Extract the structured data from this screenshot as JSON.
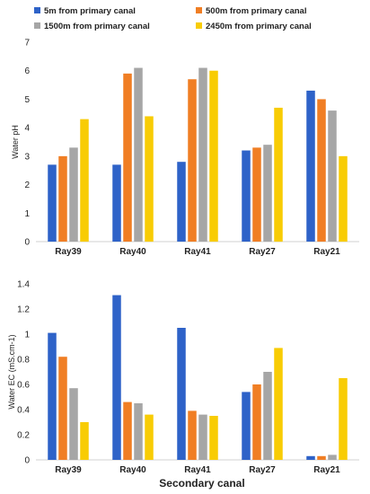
{
  "legend": [
    {
      "label": "5m from primary canal",
      "color": "#2E62C8"
    },
    {
      "label": "500m from primary canal",
      "color": "#F07E24"
    },
    {
      "label": "1500m from primary canal",
      "color": "#A6A6A6"
    },
    {
      "label": "2450m from primary canal",
      "color": "#F8CC04"
    }
  ],
  "xlabel": "Secondary canal",
  "chart_data": [
    {
      "type": "bar",
      "categories": [
        "Ray39",
        "Ray40",
        "Ray41",
        "Ray27",
        "Ray21"
      ],
      "ylabel": "Water pH",
      "ylim": [
        0,
        7
      ],
      "yticks": [
        "0",
        "1",
        "2",
        "3",
        "4",
        "5",
        "6",
        "7"
      ],
      "grid": false,
      "series": [
        {
          "name": "5m from primary canal",
          "values": [
            2.7,
            2.7,
            2.8,
            3.2,
            5.3
          ]
        },
        {
          "name": "500m from primary canal",
          "values": [
            3.0,
            5.9,
            5.7,
            3.3,
            5.0
          ]
        },
        {
          "name": "1500m from primary canal",
          "values": [
            3.3,
            6.1,
            6.1,
            3.4,
            4.6
          ]
        },
        {
          "name": "2450m from primary canal",
          "values": [
            4.3,
            4.4,
            6.0,
            4.7,
            3.0
          ]
        }
      ]
    },
    {
      "type": "bar",
      "categories": [
        "Ray39",
        "Ray40",
        "Ray41",
        "Ray27",
        "Ray21"
      ],
      "ylabel": "Water EC (mS.cm-1)",
      "ylim": [
        0,
        1.4
      ],
      "yticks": [
        "0",
        "0.2",
        "0.4",
        "0.6",
        "0.8",
        "1",
        "1.2",
        "1.4"
      ],
      "grid": false,
      "series": [
        {
          "name": "5m from primary canal",
          "values": [
            1.01,
            1.31,
            1.05,
            0.54,
            0.03
          ]
        },
        {
          "name": "500m from primary canal",
          "values": [
            0.82,
            0.46,
            0.39,
            0.6,
            0.03
          ]
        },
        {
          "name": "1500m from primary canal",
          "values": [
            0.57,
            0.45,
            0.36,
            0.7,
            0.04
          ]
        },
        {
          "name": "2450m from primary canal",
          "values": [
            0.3,
            0.36,
            0.35,
            0.89,
            0.65
          ]
        }
      ]
    }
  ]
}
